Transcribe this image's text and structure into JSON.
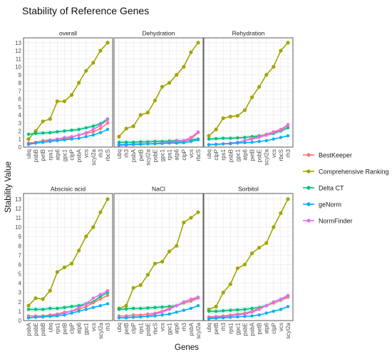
{
  "chart_data": {
    "type": "line",
    "title": "Stability of Reference Genes",
    "xlabel": "Genes",
    "ylabel": "Stability Value",
    "ylim": [
      0,
      13.6
    ],
    "yticks": [
      0,
      1,
      2,
      3,
      4,
      5,
      6,
      7,
      8,
      9,
      10,
      11,
      12,
      13
    ],
    "grid": true,
    "legend_position": "right",
    "legend": [
      {
        "name": "BestKeeper",
        "color": "#F8766D"
      },
      {
        "name": "Comprehensive Ranking",
        "color": "#A3A500"
      },
      {
        "name": "Delta CT",
        "color": "#00BF7D"
      },
      {
        "name": "geNorm",
        "color": "#00B0F6"
      },
      {
        "name": "NormFinder",
        "color": "#E76BF3"
      }
    ],
    "panels": [
      {
        "title": "overall",
        "categories": [
          "ubq",
          "psbB",
          "petB",
          "rps1",
          "atp6",
          "gpc1",
          "clpP",
          "psbA",
          "vcs",
          "scyl2a",
          "rh3",
          "rbcS"
        ],
        "series": [
          {
            "name": "Comprehensive Ranking",
            "values": [
              1.0,
              2.0,
              3.2,
              3.5,
              5.7,
              5.7,
              6.5,
              8.0,
              9.5,
              10.5,
              12.0,
              13.0
            ]
          },
          {
            "name": "Delta CT",
            "values": [
              1.6,
              1.7,
              1.75,
              1.8,
              1.9,
              2.0,
              2.1,
              2.2,
              2.4,
              2.6,
              2.9,
              3.5
            ]
          },
          {
            "name": "BestKeeper",
            "values": [
              0.5,
              0.6,
              0.8,
              0.9,
              1.0,
              1.0,
              1.2,
              1.5,
              1.7,
              1.9,
              2.3,
              3.0
            ]
          },
          {
            "name": "NormFinder",
            "values": [
              0.3,
              0.5,
              0.6,
              0.8,
              1.0,
              1.2,
              1.3,
              1.5,
              1.8,
              2.2,
              2.7,
              3.4
            ]
          },
          {
            "name": "geNorm",
            "values": [
              0.4,
              0.5,
              0.6,
              0.7,
              0.8,
              0.9,
              1.0,
              1.1,
              1.3,
              1.5,
              1.8,
              2.2
            ]
          }
        ]
      },
      {
        "title": "Dehydration",
        "categories": [
          "ubq",
          "rh3",
          "psbA",
          "petB",
          "scyl2a",
          "psbE",
          "gpc1",
          "rps1",
          "atp6",
          "clpP",
          "vcs",
          "rbcS"
        ],
        "series": [
          {
            "name": "Comprehensive Ranking",
            "values": [
              1.3,
              2.3,
              2.6,
              4.0,
              4.3,
              5.8,
              7.5,
              8.0,
              9.0,
              10.0,
              11.8,
              13.0
            ]
          },
          {
            "name": "Delta CT",
            "values": [
              0.6,
              0.6,
              0.6,
              0.65,
              0.65,
              0.7,
              0.7,
              0.75,
              0.8,
              0.8,
              0.9,
              1.0
            ]
          },
          {
            "name": "BestKeeper",
            "values": [
              0.3,
              0.3,
              0.35,
              0.4,
              0.4,
              0.45,
              0.5,
              0.6,
              0.6,
              0.7,
              1.0,
              1.8
            ]
          },
          {
            "name": "NormFinder",
            "values": [
              0.2,
              0.25,
              0.3,
              0.35,
              0.4,
              0.45,
              0.5,
              0.6,
              0.7,
              0.8,
              1.2,
              1.9
            ]
          },
          {
            "name": "geNorm",
            "values": [
              0.3,
              0.3,
              0.35,
              0.35,
              0.4,
              0.4,
              0.45,
              0.5,
              0.5,
              0.55,
              0.7,
              0.9
            ]
          }
        ]
      },
      {
        "title": "Rehydration",
        "categories": [
          "ubq",
          "clpP",
          "rps1",
          "psbB",
          "gpc1",
          "atp6",
          "petB",
          "psbE",
          "scyl2a",
          "vcs",
          "rbcS",
          "rh3"
        ],
        "series": [
          {
            "name": "Comprehensive Ranking",
            "values": [
              1.4,
              2.2,
              3.6,
              3.8,
              3.9,
              4.6,
              6.2,
              7.5,
              9.0,
              10.0,
              12.0,
              13.0
            ]
          },
          {
            "name": "Delta CT",
            "values": [
              1.0,
              1.05,
              1.1,
              1.1,
              1.15,
              1.2,
              1.3,
              1.4,
              1.5,
              1.7,
              2.0,
              2.4
            ]
          },
          {
            "name": "BestKeeper",
            "values": [
              0.3,
              0.3,
              0.4,
              0.4,
              0.6,
              0.8,
              1.1,
              1.3,
              1.6,
              1.9,
              2.2,
              2.8
            ]
          },
          {
            "name": "NormFinder",
            "values": [
              0.3,
              0.35,
              0.4,
              0.5,
              0.6,
              0.8,
              1.0,
              1.2,
              1.5,
              1.8,
              2.1,
              2.7
            ]
          },
          {
            "name": "geNorm",
            "values": [
              0.3,
              0.35,
              0.4,
              0.45,
              0.5,
              0.55,
              0.6,
              0.7,
              0.8,
              1.0,
              1.2,
              1.4
            ]
          }
        ]
      },
      {
        "title": "Abscisic acid",
        "categories": [
          "psbA",
          "psbE",
          "psbB",
          "ubq",
          "rps1",
          "petB",
          "clpP",
          "atp6",
          "gpc1",
          "vcs",
          "scyl2a",
          "rh3"
        ],
        "series": [
          {
            "name": "Comprehensive Ranking",
            "values": [
              1.6,
              2.4,
              2.3,
              3.2,
              5.2,
              5.7,
              6.1,
              7.5,
              9.0,
              10.0,
              11.6,
              13.0
            ]
          },
          {
            "name": "Delta CT",
            "values": [
              1.2,
              1.2,
              1.2,
              1.3,
              1.3,
              1.4,
              1.5,
              1.6,
              1.8,
              2.0,
              2.6,
              3.0
            ]
          },
          {
            "name": "BestKeeper",
            "values": [
              0.5,
              0.5,
              0.5,
              0.6,
              0.7,
              0.9,
              1.0,
              1.2,
              1.5,
              1.9,
              2.3,
              2.7
            ]
          },
          {
            "name": "NormFinder",
            "values": [
              0.3,
              0.4,
              0.4,
              0.5,
              0.6,
              0.8,
              1.0,
              1.4,
              1.8,
              2.4,
              2.8,
              3.2
            ]
          },
          {
            "name": "geNorm",
            "values": [
              0.3,
              0.35,
              0.4,
              0.45,
              0.5,
              0.6,
              0.8,
              1.0,
              1.2,
              1.4,
              1.6,
              1.8
            ]
          }
        ]
      },
      {
        "title": "NaCl",
        "categories": [
          "ubq",
          "petB",
          "clpP",
          "rps1",
          "psbE",
          "rbcS",
          "vcs",
          "gpc1",
          "atp6",
          "rh3",
          "psbA",
          "scyl2a"
        ],
        "series": [
          {
            "name": "Comprehensive Ranking",
            "values": [
              1.3,
              1.6,
              3.5,
              3.8,
              4.9,
              6.1,
              6.3,
              7.4,
              8.0,
              10.5,
              11.0,
              11.6
            ]
          },
          {
            "name": "Delta CT",
            "values": [
              1.2,
              1.25,
              1.3,
              1.3,
              1.35,
              1.4,
              1.45,
              1.5,
              1.6,
              1.9,
              2.1,
              2.5
            ]
          },
          {
            "name": "BestKeeper",
            "values": [
              0.5,
              0.5,
              0.6,
              0.6,
              0.7,
              0.8,
              1.0,
              1.3,
              1.6,
              1.9,
              2.1,
              2.4
            ]
          },
          {
            "name": "NormFinder",
            "values": [
              0.3,
              0.35,
              0.4,
              0.45,
              0.5,
              0.7,
              0.9,
              1.2,
              1.6,
              2.0,
              2.3,
              2.5
            ]
          },
          {
            "name": "geNorm",
            "values": [
              0.3,
              0.3,
              0.35,
              0.4,
              0.45,
              0.5,
              0.6,
              0.7,
              0.9,
              1.1,
              1.3,
              1.6
            ]
          }
        ]
      },
      {
        "title": "Sorbitol",
        "categories": [
          "ubq",
          "petB",
          "rh3",
          "rps1",
          "gpc1",
          "psbE",
          "psbA",
          "petB",
          "atp6",
          "clpP",
          "vcs",
          "scyl2a"
        ],
        "series": [
          {
            "name": "Comprehensive Ranking",
            "values": [
              1.2,
              1.5,
              3.0,
              3.9,
              5.6,
              6.0,
              7.2,
              7.8,
              8.3,
              10.0,
              11.5,
              13.0
            ]
          },
          {
            "name": "Delta CT",
            "values": [
              1.0,
              1.0,
              1.05,
              1.1,
              1.15,
              1.2,
              1.3,
              1.4,
              1.6,
              1.9,
              2.2,
              2.6
            ]
          },
          {
            "name": "BestKeeper",
            "values": [
              0.4,
              0.45,
              0.5,
              0.6,
              0.7,
              0.8,
              1.0,
              1.3,
              1.6,
              1.9,
              2.2,
              2.5
            ]
          },
          {
            "name": "NormFinder",
            "values": [
              0.3,
              0.35,
              0.4,
              0.5,
              0.6,
              0.7,
              0.9,
              1.2,
              1.6,
              2.0,
              2.3,
              2.7
            ]
          },
          {
            "name": "geNorm",
            "values": [
              0.2,
              0.25,
              0.3,
              0.35,
              0.4,
              0.45,
              0.5,
              0.6,
              0.8,
              1.0,
              1.2,
              1.5
            ]
          }
        ]
      }
    ]
  }
}
